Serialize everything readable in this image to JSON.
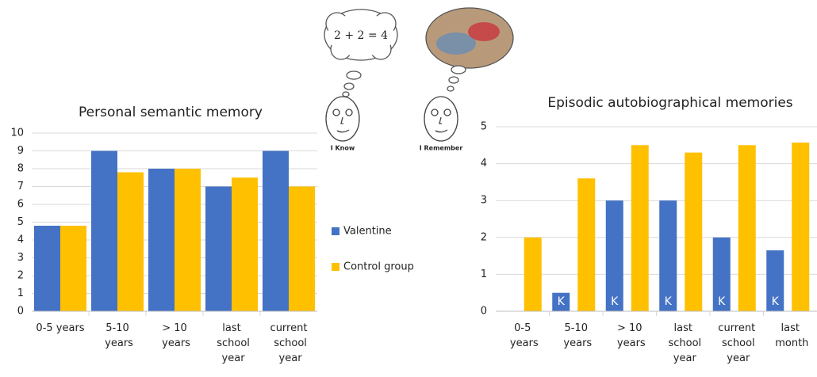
{
  "chart_data": [
    {
      "type": "bar",
      "title": "Personal semantic memory",
      "categories": [
        "0-5 years",
        "5-10 years",
        "> 10 years",
        "last school year",
        "current school year"
      ],
      "series": [
        {
          "name": "Valentine",
          "color": "#4472c4",
          "values": [
            4.8,
            9,
            8,
            7,
            9
          ]
        },
        {
          "name": "Control group",
          "color": "#ffc000",
          "values": [
            4.8,
            7.8,
            8,
            7.5,
            7
          ]
        }
      ],
      "ylim": [
        0,
        10
      ],
      "yticks": [
        0,
        1,
        2,
        3,
        4,
        5,
        6,
        7,
        8,
        9,
        10
      ],
      "grid": true
    },
    {
      "type": "bar",
      "title": "Episodic autobiographical memories",
      "categories": [
        "0-5 years",
        "5-10 years",
        "> 10 years",
        "last school year",
        "current school year",
        "last month"
      ],
      "series": [
        {
          "color": "#4472c4",
          "values": [
            0,
            0.5,
            3,
            3,
            2,
            1.65
          ],
          "value_labels": [
            null,
            "K",
            "K",
            "K",
            "K",
            "K"
          ]
        },
        {
          "color": "#ffc000",
          "values": [
            2,
            3.6,
            4.5,
            4.3,
            4.5,
            4.57
          ]
        }
      ],
      "ylim": [
        0,
        5
      ],
      "yticks": [
        0,
        1,
        2,
        3,
        4,
        5
      ],
      "grid": true
    }
  ],
  "illustration": {
    "thought": "2 + 2 = 4",
    "labels": [
      "I Know",
      "I Remember"
    ]
  }
}
